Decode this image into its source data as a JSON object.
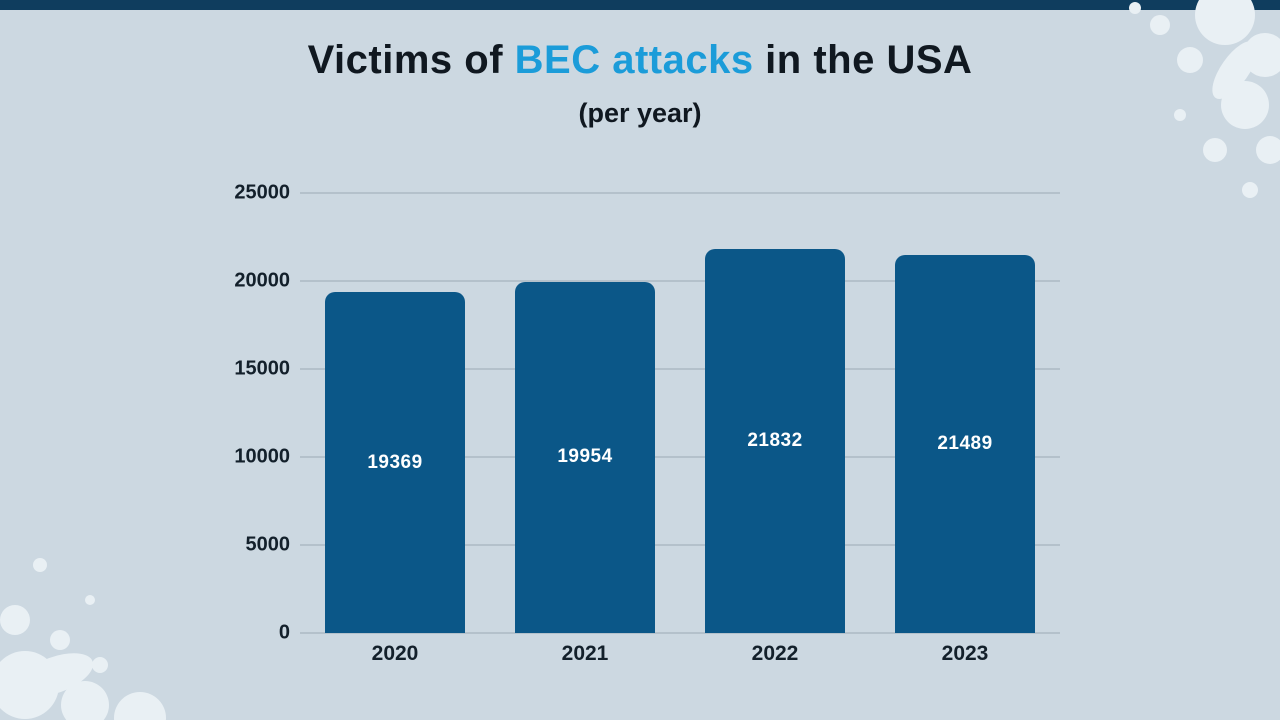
{
  "page": {
    "background_color": "#ccd8e1",
    "top_bar_color": "#0f3d5e",
    "splatter_color": "#e9f0f4"
  },
  "title": {
    "prefix": "Victims of ",
    "highlight": "BEC attacks",
    "suffix": " in the USA",
    "subtitle": "(per year)",
    "highlight_color": "#1b9cd9",
    "text_color": "#101820"
  },
  "chart_data": {
    "type": "bar",
    "title": "Victims of BEC attacks in the USA (per year)",
    "categories": [
      "2020",
      "2021",
      "2022",
      "2023"
    ],
    "values": [
      19369,
      19954,
      21832,
      21489
    ],
    "value_labels": [
      "19369",
      "19954",
      "21832",
      "21489"
    ],
    "xlabel": "",
    "ylabel": "",
    "ylim": [
      0,
      25000
    ],
    "yticks": [
      0,
      5000,
      10000,
      15000,
      20000,
      25000
    ],
    "grid": "horizontal",
    "legend": "none",
    "bar_color": "#0b5788",
    "value_label_color": "#ffffff"
  }
}
